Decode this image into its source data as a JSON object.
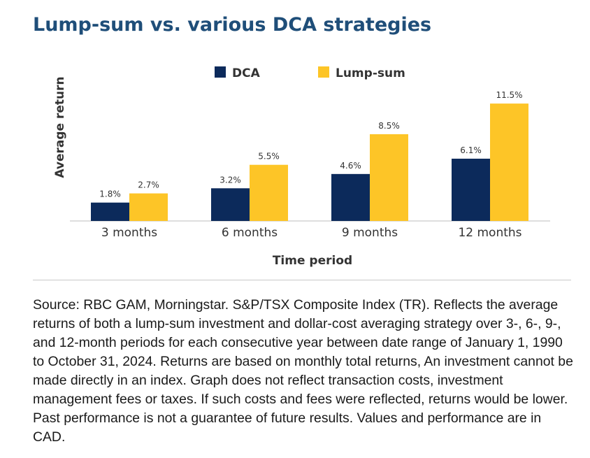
{
  "title": "Lump-sum vs. various DCA strategies",
  "colors": {
    "dca": "#0c2a5b",
    "lump_sum": "#fdc527",
    "title": "#1f4e79",
    "text": "#333333"
  },
  "chart_data": {
    "type": "bar",
    "title": "Lump-sum vs. various DCA strategies",
    "xlabel": "Time period",
    "ylabel": "Average return",
    "categories": [
      "3 months",
      "6 months",
      "9 months",
      "12 months"
    ],
    "series": [
      {
        "name": "DCA",
        "values": [
          1.8,
          3.2,
          4.6,
          6.1
        ],
        "labels": [
          "1.8%",
          "3.2%",
          "4.6%",
          "6.1%"
        ],
        "color": "#0c2a5b"
      },
      {
        "name": "Lump-sum",
        "values": [
          2.7,
          5.5,
          8.5,
          11.5
        ],
        "labels": [
          "2.7%",
          "5.5%",
          "8.5%",
          "11.5%"
        ],
        "color": "#fdc527"
      }
    ],
    "ylim": [
      0,
      12.5
    ],
    "grid": false,
    "legend": "top-center"
  },
  "source_text": "Source: RBC GAM, Morningstar. S&P/TSX Composite Index (TR). Reflects the average returns of both a lump-sum investment and dollar-cost averaging strategy over 3-, 6-, 9-, and 12-month periods for each consecutive year between date range of January 1, 1990 to October 31, 2024. Returns are based on monthly total returns, An investment cannot be made directly in an index. Graph does not reflect transaction costs, investment management fees or taxes. If such costs and fees were reflected, returns would be lower. Past performance is not a guarantee of future results. Values and performance are in CAD."
}
